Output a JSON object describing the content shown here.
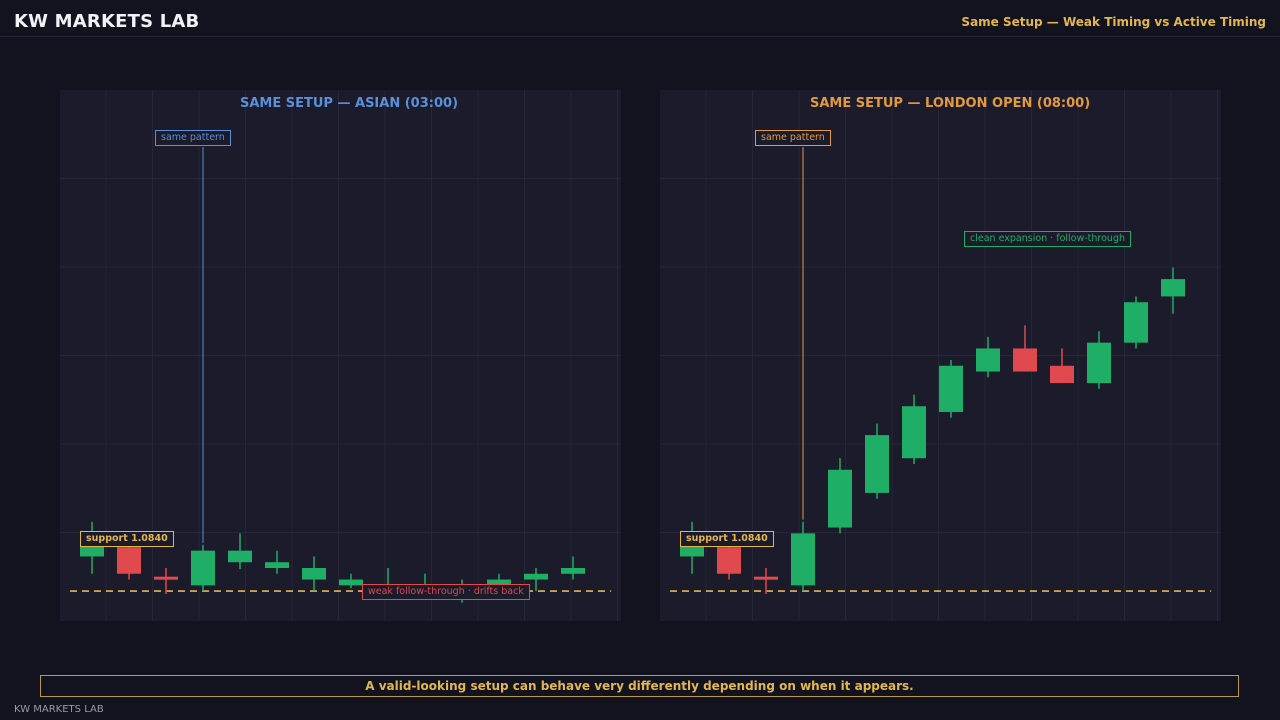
{
  "header": {
    "brand": "KW MARKETS LAB",
    "subtitle": "Same Setup — Weak Timing vs Active Timing"
  },
  "colors": {
    "bull": "#1fae66",
    "bear": "#e0494e",
    "support": "#e3b74e",
    "asian_accent": "#5b8fd8",
    "london_accent": "#e39a3d"
  },
  "chart_data": [
    {
      "type": "candlestick",
      "title": "SAME SETUP — ASIAN (03:00)",
      "support_label": "support 1.0840",
      "support_level": 1.084,
      "pattern_label": "same pattern",
      "pattern_index": 3,
      "outcome_label": "weak follow-through · drifts back",
      "ylim": [
        1.0835,
        1.0925
      ],
      "candles": [
        {
          "o": 1.0846,
          "h": 1.0852,
          "l": 1.0843,
          "c": 1.0849
        },
        {
          "o": 1.08476,
          "h": 1.0849,
          "l": 1.0842,
          "c": 1.0843
        },
        {
          "o": 1.08425,
          "h": 1.0844,
          "l": 1.08395,
          "c": 1.0842
        },
        {
          "o": 1.0841,
          "h": 1.0848,
          "l": 1.084,
          "c": 1.0847
        },
        {
          "o": 1.0845,
          "h": 1.085,
          "l": 1.08438,
          "c": 1.0847
        },
        {
          "o": 1.0844,
          "h": 1.0847,
          "l": 1.0843,
          "c": 1.0845
        },
        {
          "o": 1.0842,
          "h": 1.0846,
          "l": 1.084,
          "c": 1.0844
        },
        {
          "o": 1.0841,
          "h": 1.0843,
          "l": 1.08405,
          "c": 1.0842
        },
        {
          "o": 1.084,
          "h": 1.0844,
          "l": 1.084,
          "c": 1.0841
        },
        {
          "o": 1.0839,
          "h": 1.0843,
          "l": 1.08395,
          "c": 1.084
        },
        {
          "o": 1.0839,
          "h": 1.0842,
          "l": 1.0838,
          "c": 1.084
        },
        {
          "o": 1.0841,
          "h": 1.0843,
          "l": 1.084,
          "c": 1.0842
        },
        {
          "o": 1.0842,
          "h": 1.0844,
          "l": 1.084,
          "c": 1.0843
        },
        {
          "o": 1.0843,
          "h": 1.0846,
          "l": 1.0842,
          "c": 1.0844
        }
      ]
    },
    {
      "type": "candlestick",
      "title": "SAME SETUP — LONDON OPEN (08:00)",
      "support_label": "support 1.0840",
      "support_level": 1.084,
      "pattern_label": "same pattern",
      "pattern_index": 3,
      "outcome_label": "clean expansion · follow-through",
      "ylim": [
        1.0835,
        1.0925
      ],
      "candles": [
        {
          "o": 1.0846,
          "h": 1.0852,
          "l": 1.0843,
          "c": 1.0849
        },
        {
          "o": 1.08476,
          "h": 1.0849,
          "l": 1.0842,
          "c": 1.0843
        },
        {
          "o": 1.08425,
          "h": 1.0844,
          "l": 1.08395,
          "c": 1.0842
        },
        {
          "o": 1.0841,
          "h": 1.0852,
          "l": 1.084,
          "c": 1.085
        },
        {
          "o": 1.0851,
          "h": 1.0863,
          "l": 1.085,
          "c": 1.0861
        },
        {
          "o": 1.0857,
          "h": 1.0869,
          "l": 1.0856,
          "c": 1.0867
        },
        {
          "o": 1.0863,
          "h": 1.0874,
          "l": 1.0862,
          "c": 1.0872
        },
        {
          "o": 1.0871,
          "h": 1.088,
          "l": 1.087,
          "c": 1.0879
        },
        {
          "o": 1.0878,
          "h": 1.0884,
          "l": 1.0877,
          "c": 1.0882
        },
        {
          "o": 1.0882,
          "h": 1.0886,
          "l": 1.0878,
          "c": 1.0878
        },
        {
          "o": 1.0879,
          "h": 1.0882,
          "l": 1.0876,
          "c": 1.0876
        },
        {
          "o": 1.0876,
          "h": 1.0885,
          "l": 1.0875,
          "c": 1.0883
        },
        {
          "o": 1.0883,
          "h": 1.0891,
          "l": 1.0882,
          "c": 1.089
        },
        {
          "o": 1.0891,
          "h": 1.0896,
          "l": 1.0888,
          "c": 1.0894
        }
      ]
    }
  ],
  "caption": "A valid-looking setup can behave very differently depending on when it appears.",
  "footer": "KW MARKETS LAB"
}
